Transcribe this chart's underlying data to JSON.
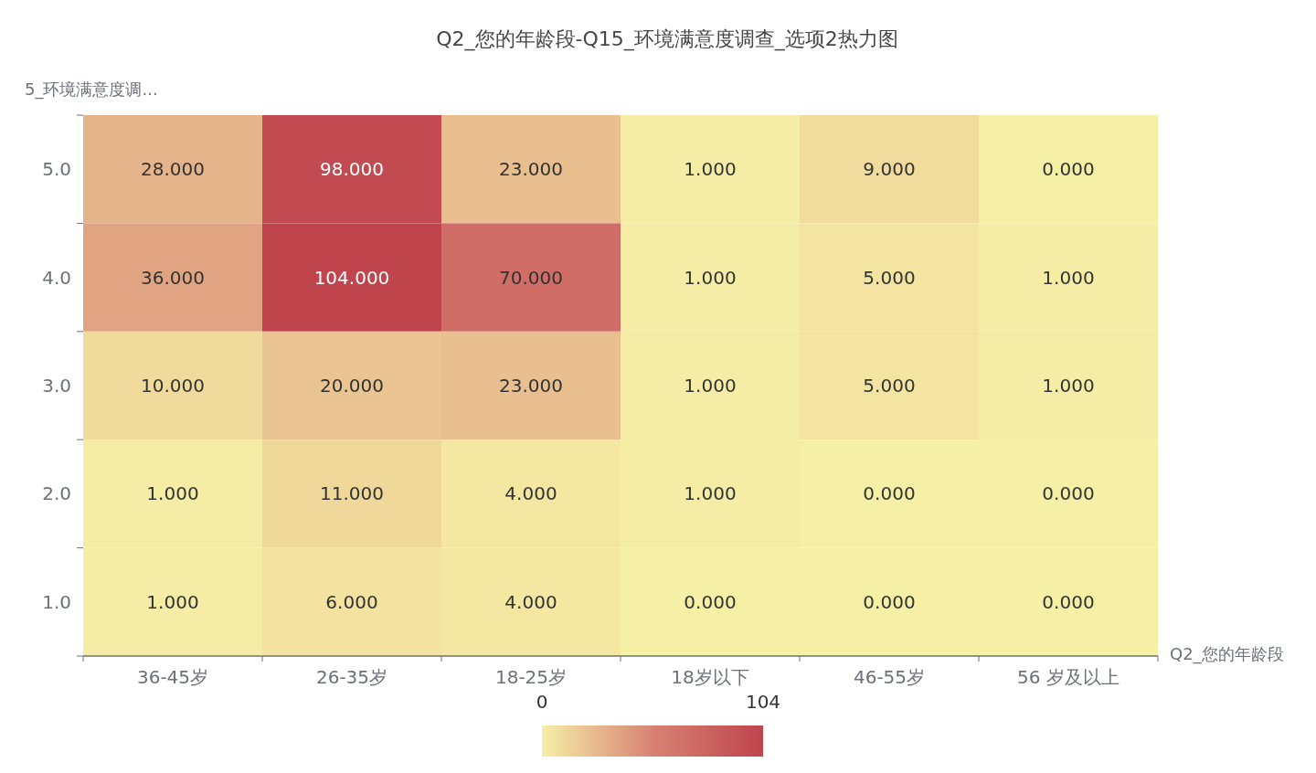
{
  "chart_data": {
    "type": "heatmap",
    "title": "Q2_您的年龄段-Q15_环境满意度调查_选项2热力图",
    "xlabel": "Q2_您的年龄段",
    "ylabel": "5_环境满意度调...",
    "categories": [
      "36-45岁",
      "26-35岁",
      "18-25岁",
      "18岁以下",
      "46-55岁",
      "56 岁及以上"
    ],
    "y_categories": [
      "5.0",
      "4.0",
      "3.0",
      "2.0",
      "1.0"
    ],
    "cells": [
      [
        28,
        98,
        23,
        1,
        9,
        0
      ],
      [
        36,
        104,
        70,
        1,
        5,
        1
      ],
      [
        10,
        20,
        23,
        1,
        5,
        1
      ],
      [
        1,
        11,
        4,
        1,
        0,
        0
      ],
      [
        1,
        6,
        4,
        0,
        0,
        0
      ]
    ],
    "cell_labels": [
      [
        "28.000",
        "98.000",
        "23.000",
        "1.000",
        "9.000",
        "0.000"
      ],
      [
        "36.000",
        "104.000",
        "70.000",
        "1.000",
        "5.000",
        "1.000"
      ],
      [
        "10.000",
        "20.000",
        "23.000",
        "1.000",
        "5.000",
        "1.000"
      ],
      [
        "1.000",
        "11.000",
        "4.000",
        "1.000",
        "0.000",
        "0.000"
      ],
      [
        "1.000",
        "6.000",
        "4.000",
        "0.000",
        "0.000",
        "0.000"
      ]
    ],
    "clim": [
      0,
      104
    ],
    "cticks": [
      0,
      104
    ]
  }
}
